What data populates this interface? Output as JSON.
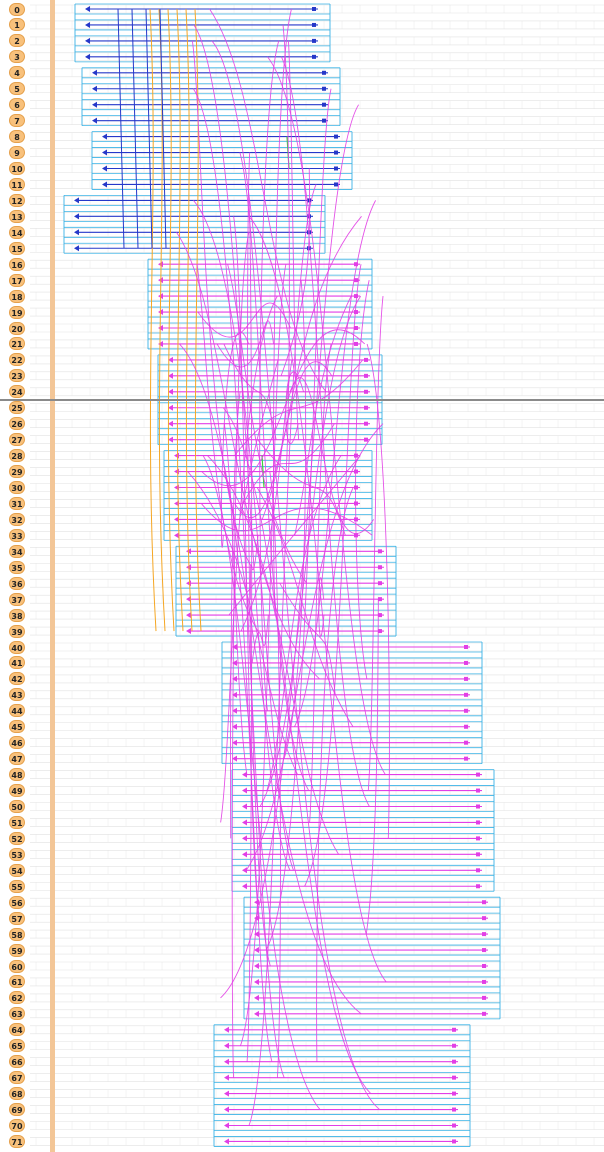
{
  "rows": {
    "labels": [
      "0",
      "1",
      "2",
      "3",
      "4",
      "5",
      "6",
      "7",
      "8",
      "9",
      "10",
      "11",
      "12",
      "13",
      "14",
      "15",
      "16",
      "17",
      "18",
      "19",
      "20",
      "21",
      "22",
      "23",
      "24",
      "25",
      "26",
      "27",
      "28",
      "29",
      "30",
      "31",
      "32",
      "33",
      "34",
      "35",
      "36",
      "37",
      "38",
      "39",
      "40",
      "41",
      "42",
      "43",
      "44",
      "45",
      "46",
      "47",
      "48",
      "49",
      "50",
      "51",
      "52",
      "53",
      "54",
      "55",
      "56",
      "57",
      "58",
      "59",
      "60",
      "61",
      "62",
      "63",
      "64",
      "65",
      "66",
      "67",
      "68",
      "69",
      "70",
      "71"
    ]
  },
  "colors": {
    "badge_fill": "#f8c17c",
    "badge_border": "#e5a04b",
    "track": "#e2e2e2",
    "spine": "#f3c697",
    "blue_net": "#2638c9",
    "magenta_net": "#e23fe6",
    "cyan_net": "#3ab3e6",
    "orange_net": "#f5a623",
    "green_net": "#3ccf3c",
    "divider": "#8a8a8a"
  }
}
